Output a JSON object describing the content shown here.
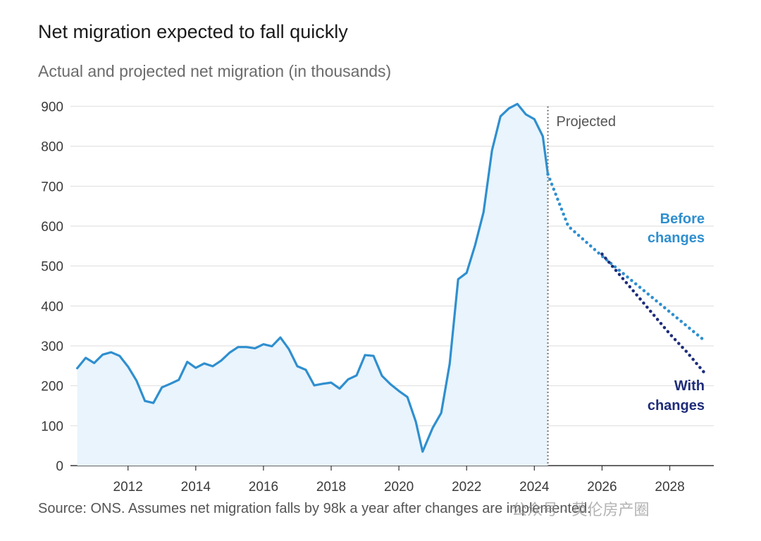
{
  "title": "Net migration expected to fall quickly",
  "subtitle": "Actual and projected net migration (in thousands)",
  "source": "Source: ONS. Assumes net migration falls by 98k a year after changes are implemented.",
  "watermark": "公众号 · 英伦房产圈",
  "colors": {
    "actual_line": "#2f8fcf",
    "actual_fill": "#e9f4fc",
    "before_changes": "#2f8fcf",
    "with_changes": "#1f2d7a",
    "projected_divider": "#777777",
    "grid": "#dddddd"
  },
  "chart_data": {
    "type": "line",
    "title": "Net migration expected to fall quickly",
    "subtitle": "Actual and projected net migration (in thousands)",
    "xlabel": "",
    "ylabel": "",
    "ylim": [
      0,
      900
    ],
    "yticks": [
      0,
      100,
      200,
      300,
      400,
      500,
      600,
      700,
      800,
      900
    ],
    "xlim": [
      2010.3,
      2029.3
    ],
    "xticks": [
      2012,
      2014,
      2016,
      2018,
      2020,
      2022,
      2024,
      2026,
      2028
    ],
    "grid": true,
    "projected_from": 2024.4,
    "projected_label": "Projected",
    "series": [
      {
        "name": "",
        "style": "solid-area",
        "x": [
          2010.5,
          2010.75,
          2011.0,
          2011.25,
          2011.5,
          2011.75,
          2012.0,
          2012.25,
          2012.5,
          2012.75,
          2013.0,
          2013.25,
          2013.5,
          2013.75,
          2014.0,
          2014.25,
          2014.5,
          2014.75,
          2015.0,
          2015.25,
          2015.5,
          2015.75,
          2016.0,
          2016.25,
          2016.5,
          2016.75,
          2017.0,
          2017.25,
          2017.5,
          2017.75,
          2018.0,
          2018.25,
          2018.5,
          2018.75,
          2019.0,
          2019.25,
          2019.5,
          2019.75,
          2020.0,
          2020.25,
          2020.5,
          2020.7,
          2021.0,
          2021.25,
          2021.5,
          2021.75,
          2022.0,
          2022.25,
          2022.5,
          2022.75,
          2023.0,
          2023.25,
          2023.5,
          2023.75,
          2024.0,
          2024.25,
          2024.4
        ],
        "values": [
          244,
          270,
          257,
          278,
          284,
          275,
          248,
          213,
          162,
          157,
          196,
          205,
          215,
          260,
          245,
          256,
          249,
          263,
          283,
          297,
          297,
          294,
          304,
          299,
          321,
          292,
          249,
          240,
          201,
          205,
          208,
          193,
          216,
          226,
          277,
          275,
          225,
          204,
          187,
          172,
          110,
          35,
          95,
          132,
          255,
          467,
          483,
          552,
          635,
          790,
          875,
          895,
          906,
          880,
          868,
          825,
          730
        ]
      },
      {
        "name": "Before changes",
        "style": "dotted",
        "x": [
          2024.4,
          2024.7,
          2025.0,
          2026.0,
          2027.0,
          2028.0,
          2029.0
        ],
        "values": [
          730,
          665,
          600,
          525,
          455,
          385,
          315
        ]
      },
      {
        "name": "With changes",
        "style": "dotted",
        "x": [
          2026.0,
          2026.5,
          2027.0,
          2027.5,
          2028.0,
          2028.5,
          2029.0
        ],
        "values": [
          530,
          480,
          430,
          380,
          330,
          285,
          235
        ]
      }
    ],
    "annotations": [
      {
        "text": [
          "Before",
          "changes"
        ],
        "series": "Before changes"
      },
      {
        "text": [
          "With",
          "changes"
        ],
        "series": "With changes"
      }
    ]
  }
}
